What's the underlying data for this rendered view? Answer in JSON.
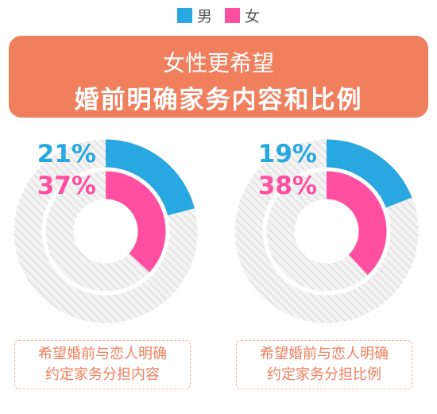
{
  "legend": [
    {
      "label": "男",
      "color": "#29a7e1"
    },
    {
      "label": "女",
      "color": "#ff4fa0"
    }
  ],
  "banner": {
    "line1": "女性更希望",
    "line2": "婚前明确家务内容和比例"
  },
  "chart_data": [
    {
      "type": "pie",
      "variant": "concentric-donut",
      "series": [
        {
          "name": "男",
          "value": 21,
          "label": "21%",
          "color": "#29a7e1"
        },
        {
          "name": "女",
          "value": 37,
          "label": "37%",
          "color": "#ff4fa0"
        }
      ],
      "caption": [
        "希望婚前与恋人明确",
        "约定家务分担内容"
      ]
    },
    {
      "type": "pie",
      "variant": "concentric-donut",
      "series": [
        {
          "name": "男",
          "value": 19,
          "label": "19%",
          "color": "#29a7e1"
        },
        {
          "name": "女",
          "value": 38,
          "label": "38%",
          "color": "#ff4fa0"
        }
      ],
      "caption": [
        "希望婚前与恋人明确",
        "约定家务分担比例"
      ]
    }
  ]
}
